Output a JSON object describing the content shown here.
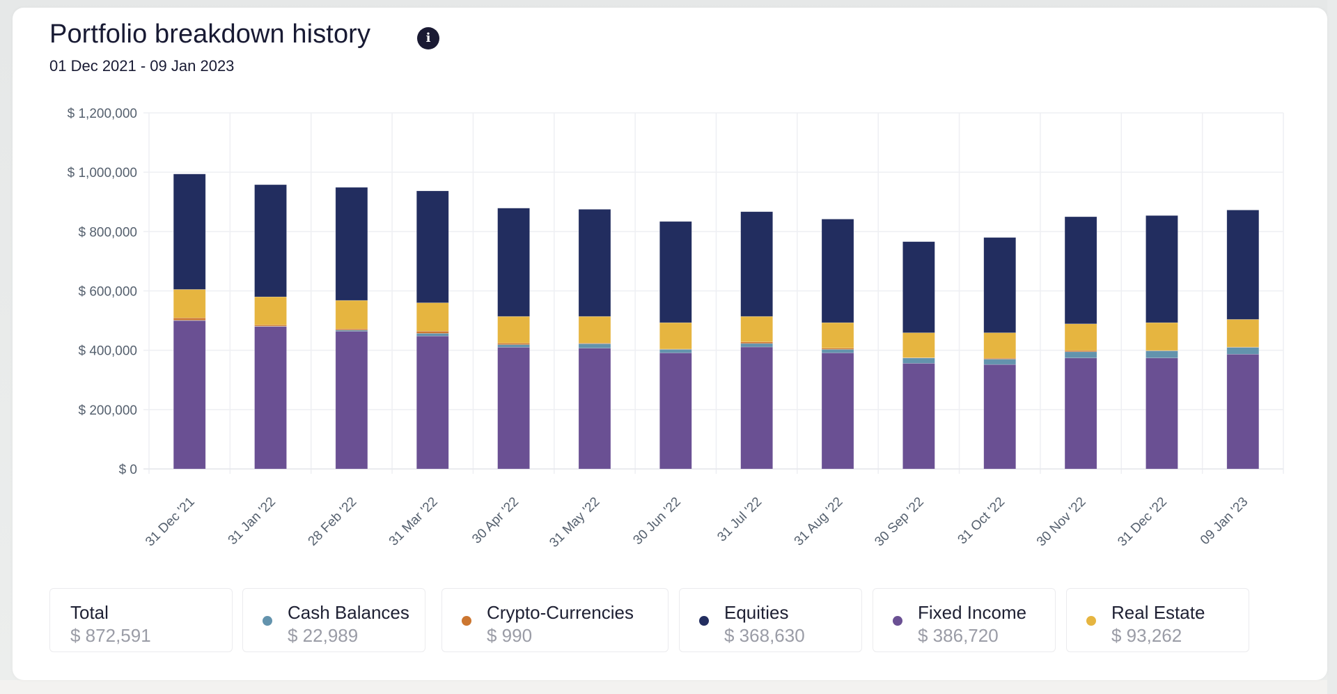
{
  "header": {
    "title": "Portfolio breakdown history",
    "info_icon": "info-icon",
    "info_glyph": "i",
    "date_range": "01 Dec 2021 - 09 Jan 2023"
  },
  "legend": [
    {
      "label": "Total",
      "value": "$ 872,591",
      "color": null
    },
    {
      "label": "Cash Balances",
      "value": "$ 22,989",
      "color": "#6393ad"
    },
    {
      "label": "Crypto-Currencies",
      "value": "$ 990",
      "color": "#cc7630"
    },
    {
      "label": "Equities",
      "value": "$ 368,630",
      "color": "#222d5f"
    },
    {
      "label": "Fixed Income",
      "value": "$ 386,720",
      "color": "#6a5093"
    },
    {
      "label": "Real Estate",
      "value": "$ 93,262",
      "color": "#e6b540"
    }
  ],
  "chart_data": {
    "type": "bar",
    "stacked": true,
    "title": "Portfolio breakdown history",
    "subtitle": "01 Dec 2021 - 09 Jan 2023",
    "xlabel": "",
    "ylabel": "",
    "ylim": [
      0,
      1200000
    ],
    "yticks": [
      0,
      200000,
      400000,
      600000,
      800000,
      1000000,
      1200000
    ],
    "ytick_labels": [
      "$ 0",
      "$ 200,000",
      "$ 400,000",
      "$ 600,000",
      "$ 800,000",
      "$ 1,000,000",
      "$ 1,200,000"
    ],
    "grid": true,
    "legend_position": "bottom",
    "categories": [
      "31 Dec '21",
      "31 Jan '22",
      "28 Feb '22",
      "31 Mar '22",
      "30 Apr '22",
      "31 May '22",
      "30 Jun '22",
      "31 Jul '22",
      "31 Aug '22",
      "30 Sep '22",
      "31 Oct '22",
      "30 Nov '22",
      "31 Dec '22",
      "09 Jan '23"
    ],
    "series": [
      {
        "name": "Fixed Income",
        "color": "#6a5093",
        "values": [
          500000,
          480000,
          464000,
          448000,
          410000,
          407000,
          391000,
          411000,
          391000,
          356000,
          352000,
          374000,
          374000,
          386720
        ]
      },
      {
        "name": "Cash Balances",
        "color": "#6393ad",
        "values": [
          1000,
          1000,
          4000,
          9000,
          9000,
          15000,
          12000,
          12000,
          12000,
          18000,
          18000,
          21000,
          24000,
          22989
        ]
      },
      {
        "name": "Crypto-Currencies",
        "color": "#cc7630",
        "values": [
          8000,
          4000,
          4000,
          7000,
          5000,
          2000,
          1000,
          5000,
          4000,
          1000,
          3000,
          4000,
          1000,
          990
        ]
      },
      {
        "name": "Real Estate",
        "color": "#e6b540",
        "values": [
          96000,
          95000,
          96000,
          96000,
          90000,
          90000,
          89000,
          86000,
          86000,
          84000,
          86000,
          90000,
          94000,
          93262
        ]
      },
      {
        "name": "Equities",
        "color": "#222d5f",
        "values": [
          389000,
          378000,
          381000,
          377000,
          365000,
          361000,
          341000,
          353000,
          349000,
          307000,
          321000,
          361000,
          361000,
          368630
        ]
      }
    ]
  }
}
